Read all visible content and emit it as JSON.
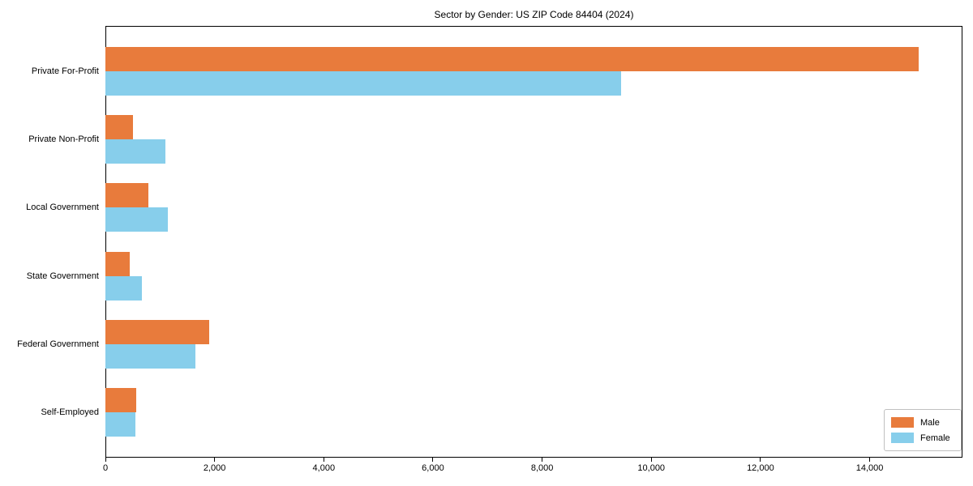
{
  "chart_data": {
    "type": "bar",
    "orientation": "horizontal",
    "title": "Sector by Gender: US ZIP Code 84404 (2024)",
    "categories": [
      "Private For-Profit",
      "Private Non-Profit",
      "Local Government",
      "State Government",
      "Federal Government",
      "Self-Employed"
    ],
    "series": [
      {
        "name": "Male",
        "color": "#e87b3c",
        "values": [
          14900,
          500,
          780,
          440,
          1900,
          570
        ]
      },
      {
        "name": "Female",
        "color": "#87ceeb",
        "values": [
          9450,
          1100,
          1150,
          670,
          1650,
          550
        ]
      }
    ],
    "xlim": [
      0,
      15700
    ],
    "xticks": [
      0,
      2000,
      4000,
      6000,
      8000,
      10000,
      12000,
      14000
    ],
    "xtick_labels": [
      "0",
      "2,000",
      "4,000",
      "6,000",
      "8,000",
      "10,000",
      "12,000",
      "14,000"
    ],
    "grid": false,
    "legend_position": "lower-right"
  }
}
